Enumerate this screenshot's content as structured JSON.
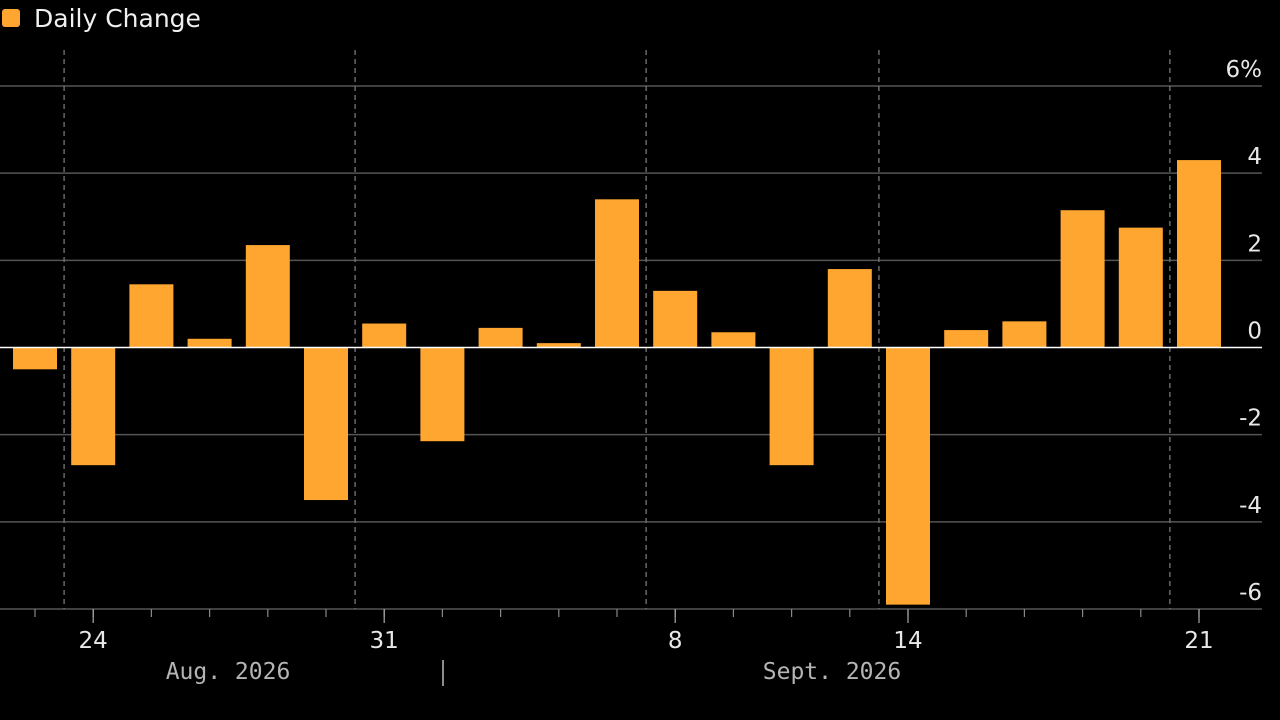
{
  "legend": {
    "label": "Daily Change",
    "color": "#FFA631"
  },
  "colors": {
    "bar": "#FFA631",
    "grid": "#555555",
    "zero": "#FFFFFF",
    "background": "#000000"
  },
  "chart_data": {
    "type": "bar",
    "categories": [
      "2026-08-21",
      "2026-08-24",
      "2026-08-25",
      "2026-08-26",
      "2026-08-27",
      "2026-08-28",
      "2026-08-31",
      "2026-09-01",
      "2026-09-02",
      "2026-09-03",
      "2026-09-04",
      "2026-09-08",
      "2026-09-09",
      "2026-09-10",
      "2026-09-11",
      "2026-09-14",
      "2026-09-15",
      "2026-09-16",
      "2026-09-17",
      "2026-09-18",
      "2026-09-21"
    ],
    "series": [
      {
        "name": "Daily Change",
        "values": [
          -0.5,
          -2.7,
          1.45,
          0.2,
          2.35,
          -3.5,
          0.55,
          -2.15,
          0.45,
          0.1,
          3.4,
          1.3,
          0.35,
          -2.7,
          1.8,
          -5.9,
          0.4,
          0.6,
          3.15,
          2.75,
          4.3
        ]
      }
    ],
    "y_ticks": [
      {
        "value": 6,
        "label": "6%"
      },
      {
        "value": 4,
        "label": "4"
      },
      {
        "value": 2,
        "label": "2"
      },
      {
        "value": 0,
        "label": "0"
      },
      {
        "value": -2,
        "label": "-2"
      },
      {
        "value": -4,
        "label": "-4"
      },
      {
        "value": -6,
        "label": "-6"
      }
    ],
    "ylim": [
      -6,
      6
    ],
    "x_ticks": [
      {
        "date": "2026-08-24",
        "label": "24"
      },
      {
        "date": "2026-08-31",
        "label": "31"
      },
      {
        "date": "2026-09-08",
        "label": "8"
      },
      {
        "date": "2026-09-14",
        "label": "14"
      },
      {
        "date": "2026-09-21",
        "label": "21"
      }
    ],
    "months": [
      {
        "label": "Aug. 2026"
      },
      {
        "label": "Sept. 2026"
      }
    ],
    "grid": true,
    "legend_position": "top-left"
  }
}
